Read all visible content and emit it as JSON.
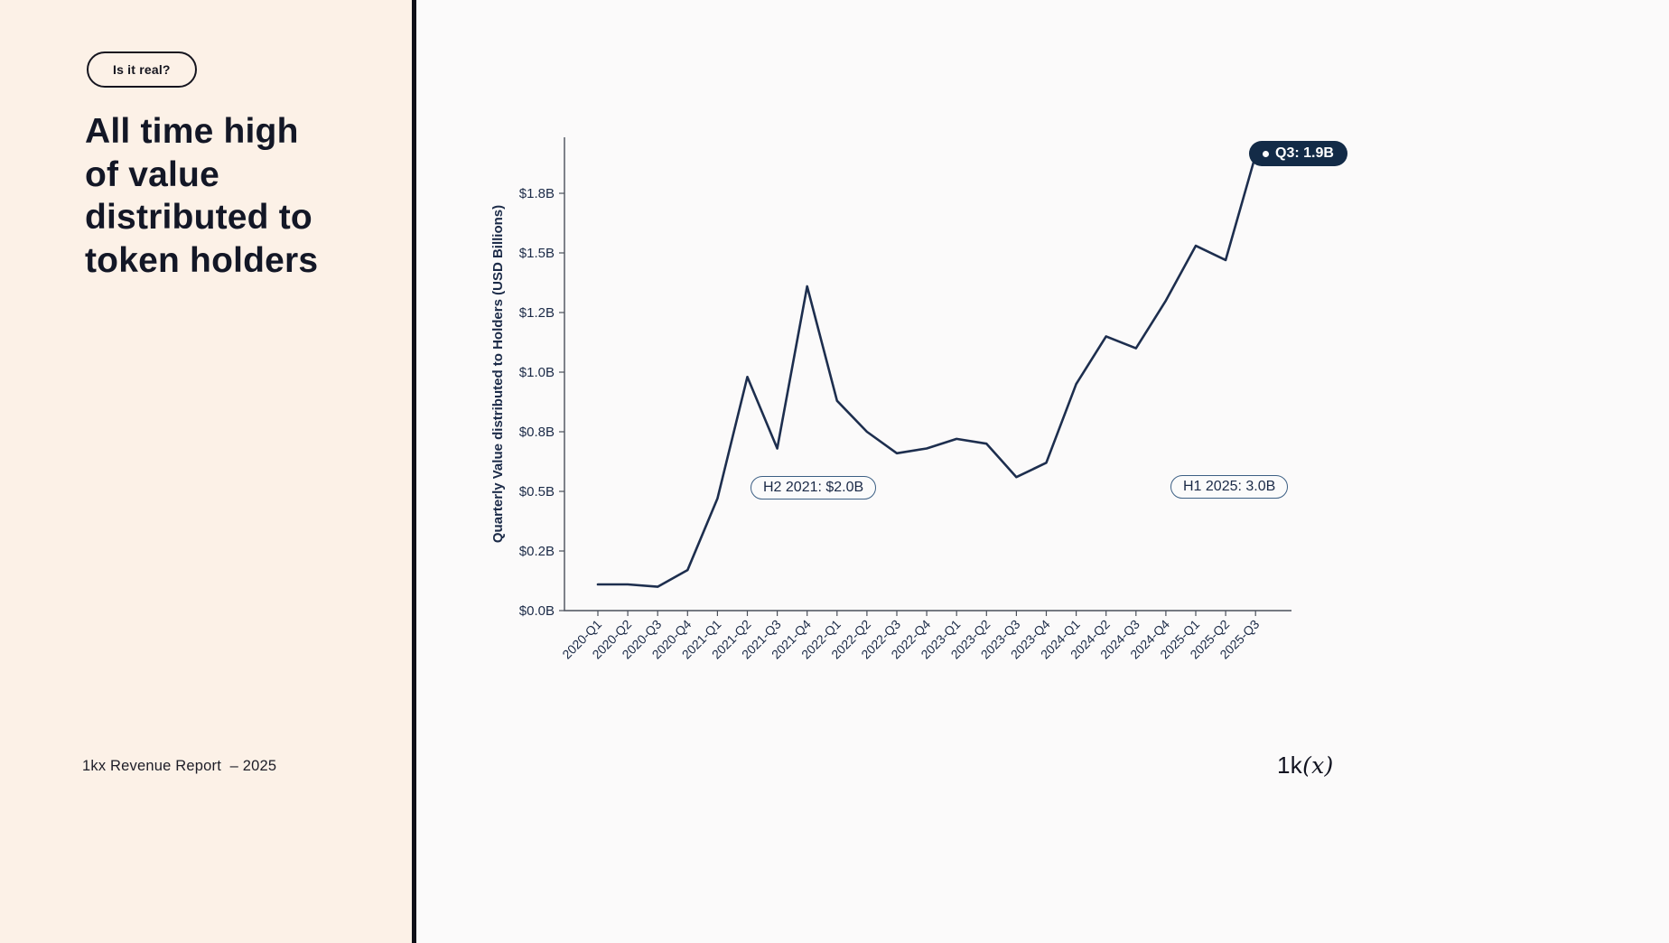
{
  "sidebar": {
    "badge_label": "Is it real?",
    "title": "All time high\nof value\ndistributed to\ntoken holders",
    "footer": "1kx Revenue Report  – 2025"
  },
  "brand": {
    "prefix": "1k",
    "suffix": "(x)"
  },
  "colors": {
    "ink": "#1b2a47",
    "line": "#1d2e4e",
    "sidebar_bg": "#fcf1e7",
    "divider": "#101018",
    "badge_bg": "#132b47",
    "main_bg": "#fbfafa"
  },
  "chart_data": {
    "type": "line",
    "title": "",
    "xlabel": "",
    "ylabel": "Quarterly Value distributed to Holders (USD Billions)",
    "ylim": [
      0,
      2.0
    ],
    "grid": false,
    "legend": "none",
    "categories": [
      "2020-Q1",
      "2020-Q2",
      "2020-Q3",
      "2020-Q4",
      "2021-Q1",
      "2021-Q2",
      "2021-Q3",
      "2021-Q4",
      "2022-Q1",
      "2022-Q2",
      "2022-Q3",
      "2022-Q4",
      "2023-Q1",
      "2023-Q2",
      "2023-Q3",
      "2023-Q4",
      "2024-Q1",
      "2024-Q2",
      "2024-Q3",
      "2024-Q4",
      "2025-Q1",
      "2025-Q2",
      "2025-Q3"
    ],
    "values": [
      0.11,
      0.11,
      0.1,
      0.17,
      0.47,
      0.98,
      0.68,
      1.36,
      0.88,
      0.75,
      0.66,
      0.68,
      0.72,
      0.7,
      0.56,
      0.62,
      0.95,
      1.15,
      1.1,
      1.3,
      1.53,
      1.47,
      1.91
    ],
    "y_ticks": [
      {
        "label": "$0.0B",
        "value": 0.0
      },
      {
        "label": "$0.2B",
        "value": 0.25
      },
      {
        "label": "$0.5B",
        "value": 0.5
      },
      {
        "label": "$0.8B",
        "value": 0.75
      },
      {
        "label": "$1.0B",
        "value": 1.0
      },
      {
        "label": "$1.2B",
        "value": 1.25
      },
      {
        "label": "$1.5B",
        "value": 1.5
      },
      {
        "label": "$1.8B",
        "value": 1.75
      }
    ],
    "annotations": [
      {
        "id": "h2-2021",
        "text": "H2 2021: $2.0B",
        "style": "outline-pill"
      },
      {
        "id": "h1-2025",
        "text": "H1 2025: 3.0B",
        "style": "outline-pill"
      },
      {
        "id": "q3-latest",
        "text": "Q3: 1.9B",
        "style": "filled-badge",
        "bullet": "dot"
      }
    ]
  }
}
